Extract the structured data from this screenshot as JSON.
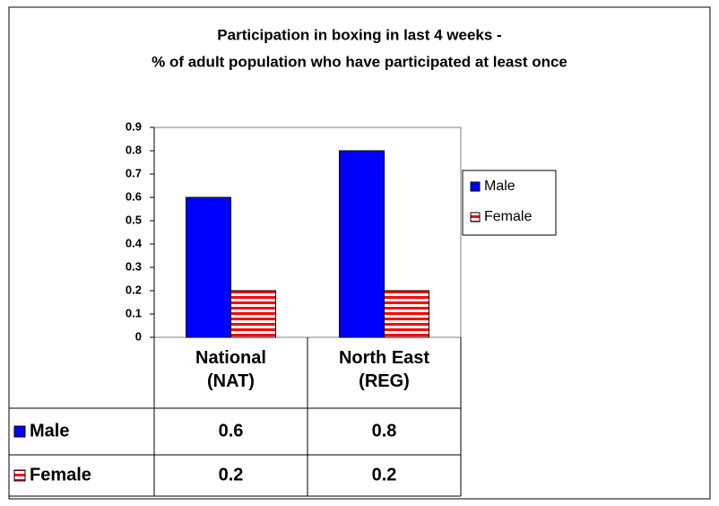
{
  "chart_data": {
    "type": "bar",
    "title": "Participation in boxing in last 4 weeks -",
    "subtitle": "% of adult population who have participated at least once",
    "categories": [
      "National\n(NAT)",
      "North East\n(REG)"
    ],
    "series": [
      {
        "name": "Male",
        "color": "#0000ff",
        "values": [
          0.6,
          0.8
        ]
      },
      {
        "name": "Female",
        "color": "#ff0000",
        "pattern": "horizontal-stripes",
        "values": [
          0.2,
          0.2
        ]
      }
    ],
    "ylim": [
      0,
      0.9
    ],
    "yticks": [
      0,
      0.1,
      0.2,
      0.3,
      0.4,
      0.5,
      0.6,
      0.7,
      0.8,
      0.9
    ],
    "grid": false,
    "legend": "right",
    "data_table": true
  }
}
